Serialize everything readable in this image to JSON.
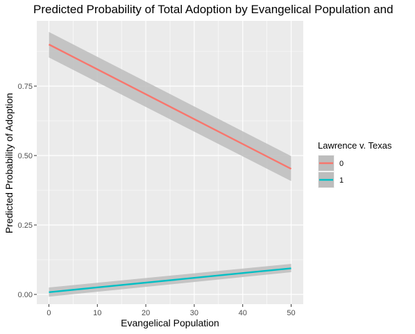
{
  "chart_data": {
    "type": "line",
    "title": "Predicted Probability of Total Adoption by Evangelical Population and",
    "xlabel": "Evangelical Population",
    "ylabel": "Predicted Probability of Adoption",
    "xlim": [
      -2.5,
      52.5
    ],
    "ylim": [
      -0.035,
      0.985
    ],
    "x_ticks": [
      0,
      10,
      20,
      30,
      40,
      50
    ],
    "y_ticks": [
      0.0,
      0.25,
      0.5,
      0.75
    ],
    "x_tick_labels": [
      "0",
      "10",
      "20",
      "30",
      "40",
      "50"
    ],
    "y_tick_labels": [
      "0.00",
      "0.25",
      "0.50",
      "0.75"
    ],
    "grid": true,
    "legend": {
      "title": "Lawrence v. Texas",
      "position": "right"
    },
    "x": [
      0,
      50
    ],
    "series": [
      {
        "name": "0",
        "color": "#F8766D",
        "values": [
          0.9,
          0.452
        ],
        "ci_lower": [
          0.853,
          0.408
        ],
        "ci_upper": [
          0.945,
          0.498
        ]
      },
      {
        "name": "1",
        "color": "#00BFC4",
        "values": [
          0.008,
          0.094
        ],
        "ci_lower": [
          -0.008,
          0.08
        ],
        "ci_upper": [
          0.025,
          0.11
        ]
      }
    ],
    "ribbon_color": "#bdbdbd"
  }
}
